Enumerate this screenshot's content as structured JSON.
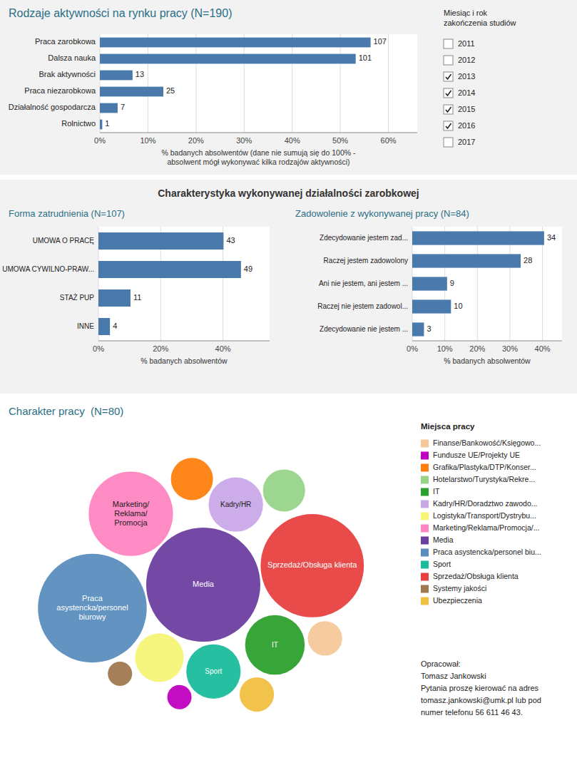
{
  "chart_data": [
    {
      "type": "bar",
      "orientation": "horizontal",
      "title": "Rodzaje aktywności na rynku pracy (N=190)",
      "categories": [
        "Praca zarobkowa",
        "Dalsza nauka",
        "Brak aktywności",
        "Praca niezarobkowa",
        "Działalność gospodarcza",
        "Rolnictwo"
      ],
      "values": [
        56.3,
        53.2,
        6.8,
        13.2,
        3.7,
        0.5
      ],
      "counts": [
        107,
        101,
        13,
        25,
        7,
        1
      ],
      "color": "#4a7aab",
      "xlabel": "% badanych absolwentów (dane nie sumują się do 100% -\nabsolwent mógł wykonywać kilka rodzajów aktywności)",
      "xlim": [
        0,
        66
      ],
      "xticks": [
        {
          "value": 0,
          "label": "0%"
        },
        {
          "value": 10,
          "label": "10%"
        },
        {
          "value": 20,
          "label": "20%"
        },
        {
          "value": 30,
          "label": "30%"
        },
        {
          "value": 40,
          "label": "40%"
        },
        {
          "value": 50,
          "label": "50%"
        },
        {
          "value": 60,
          "label": "60%"
        }
      ],
      "grid": true,
      "filter": {
        "title": "Miesiąc i rok\nzakończenia studiów",
        "items": [
          "2011",
          "2012",
          "2013",
          "2014",
          "2015",
          "2016",
          "2017"
        ],
        "checked": [
          false,
          false,
          true,
          true,
          true,
          true,
          false
        ]
      }
    },
    {
      "type": "bar",
      "orientation": "horizontal",
      "title": "Forma zatrudnienia (N=107)",
      "annotations": [
        "Charakterystyka wykonywanej działalności zarobkowej"
      ],
      "categories": [
        "UMOWA O PRACĘ",
        "UMOWA CYWILNO-PRAW...",
        "STAŻ PUP",
        "INNE"
      ],
      "values": [
        40.2,
        45.8,
        10.3,
        3.7
      ],
      "counts": [
        43,
        49,
        11,
        4
      ],
      "color": "#4a7aab",
      "xlabel": "% badanych absolwentów",
      "xlim": [
        0,
        55
      ],
      "xticks": [
        {
          "value": 0,
          "label": "0%"
        },
        {
          "value": 20,
          "label": "20%"
        },
        {
          "value": 40,
          "label": "40%"
        }
      ],
      "grid": true
    },
    {
      "type": "bar",
      "orientation": "horizontal",
      "title": "Zadowolenie z wykonywanej pracy (N=84)",
      "categories": [
        "Zdecydowanie jestem zad...",
        "Raczej jestem zadowolony",
        "Ani nie jestem, ani jestem ...",
        "Raczej nie jestem zadowol...",
        "Zdecydowanie nie jestem ..."
      ],
      "values": [
        40.5,
        33.3,
        10.7,
        11.9,
        3.6
      ],
      "counts": [
        34,
        28,
        9,
        10,
        3
      ],
      "color": "#4a7aab",
      "xlabel": "% badanych absolwentów",
      "xlim": [
        0,
        46
      ],
      "xticks": [
        {
          "value": 0,
          "label": "0%"
        },
        {
          "value": 10,
          "label": "10%"
        },
        {
          "value": 20,
          "label": "20%"
        },
        {
          "value": 30,
          "label": "30%"
        },
        {
          "value": 40,
          "label": "40%"
        }
      ],
      "grid": true
    },
    {
      "type": "bubble",
      "title": "Charakter pracy  (N=80)",
      "legend_title": "Miejsca pracy",
      "categories": [
        "Finanse/Bankowość/Księgowo...",
        "Fundusze UE/Projekty UE",
        "Grafika/Plastyka/DTP/Konser...",
        "Hotelarstwo/Turystyka/Rekre...",
        "IT",
        "Kadry/HR/Doradztwo zawodo...",
        "Logistyka/Transport/Dystrybu...",
        "Marketing/Reklama/Promocja/...",
        "Media",
        "Praca asystencka/personel biu...",
        "Sport",
        "Sprzedaż/Obsługa klienta",
        "Systemy jakości",
        "Ubezpieczenia"
      ],
      "values": [
        2,
        1,
        3,
        3,
        6,
        5,
        4,
        12,
        22,
        20,
        5,
        18,
        1,
        2
      ],
      "colors": [
        "#f5c89a",
        "#c000c0",
        "#ff7f0e",
        "#98d488",
        "#2ca02c",
        "#c9a8e8",
        "#f5f577",
        "#ff85c2",
        "#6b3fa0",
        "#5b8dbe",
        "#1abc9c",
        "#e84040",
        "#a07850",
        "#f0c040"
      ],
      "labels": [
        null,
        null,
        null,
        null,
        "IT",
        "Kadry/HR",
        null,
        "Marketing/\nReklama/\nPromocja",
        "Media",
        "Praca\nasystencka/personel\nbiurowy",
        "Sport",
        "Sprzedaż/Obsługa klienta",
        null,
        null
      ],
      "annotations": [
        "Opracował:",
        "Tomasz Jankowski",
        "Pytania proszę kierować na adres",
        "tomasz.jankowski@umk.pl lub pod",
        "numer telefonu 56 611 46 43."
      ]
    }
  ]
}
